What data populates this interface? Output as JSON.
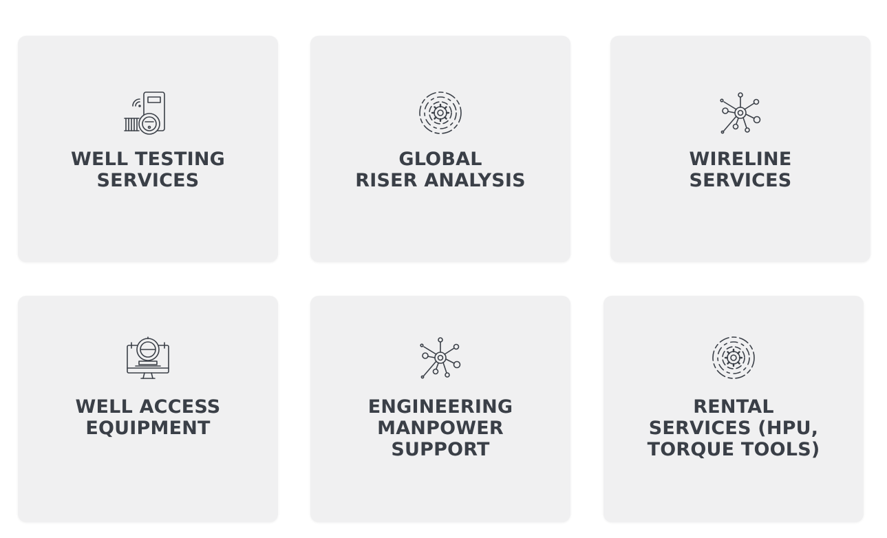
{
  "services": [
    {
      "title": "WELL  TESTING\nSERVICES",
      "icon": "meter-gauge-icon"
    },
    {
      "title": "GLOBAL\nRISER ANALYSIS",
      "icon": "gear-radar-icon"
    },
    {
      "title": "WIRELINE\nSERVICES",
      "icon": "network-hub-icon"
    },
    {
      "title": "WELL ACCESS\nEQUIPMENT",
      "icon": "monitor-equipment-icon"
    },
    {
      "title": "ENGINEERING\nMANPOWER\nSUPPORT",
      "icon": "network-hub-icon"
    },
    {
      "title": "RENTAL\nSERVICES (HPU,\nTORQUE TOOLS)",
      "icon": "gear-radar-icon"
    }
  ],
  "colors": {
    "card_background": "#f0f0f1",
    "text": "#3a3f47",
    "icon_stroke": "#3a3f47"
  }
}
